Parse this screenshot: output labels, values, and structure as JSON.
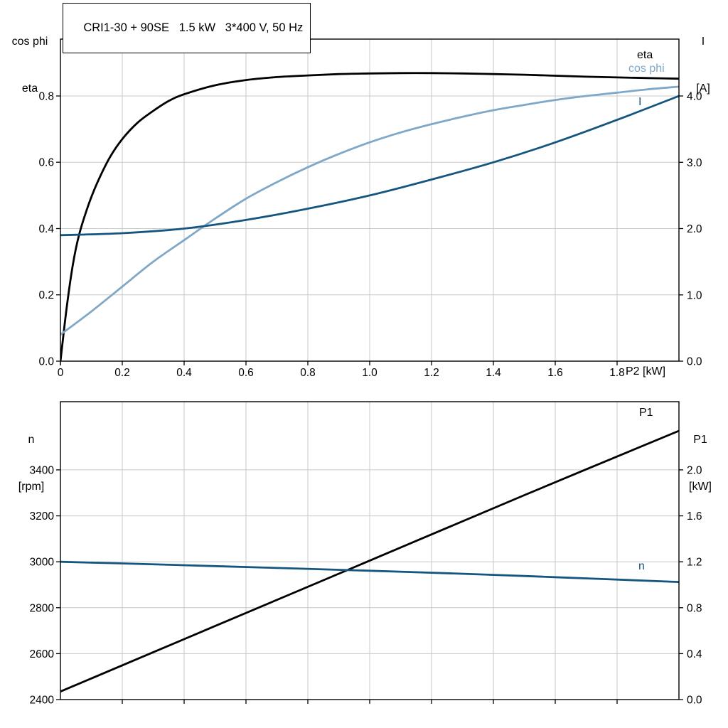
{
  "title_box": "CRI1-30 + 90SE   1.5 kW   3*400 V, 50 Hz",
  "colors": {
    "black": "#000000",
    "dark_blue": "#155680",
    "light_blue": "#7fa8c8",
    "grid": "#c9c9c9"
  },
  "labels": {
    "axis_top_left": [
      "cos phi",
      "eta"
    ],
    "axis_top_right": [
      "I",
      "[A]"
    ],
    "x_axis_title": "P2 [kW]",
    "axis_bottom_left": [
      "n",
      "[rpm]"
    ],
    "axis_bottom_right": [
      "P1",
      "[kW]"
    ],
    "curve_eta": "eta",
    "curve_cosphi": "cos phi",
    "curve_I": "I",
    "curve_P1": "P1",
    "curve_n": "n"
  },
  "chart_data": [
    {
      "type": "line",
      "title": "Motor efficiency, power factor and current vs shaft power P2",
      "xlabel": "P2 [kW]",
      "ylabel_left": "cos phi / eta",
      "ylabel_right": "I [A]",
      "xlim": [
        0,
        2.0
      ],
      "xticks": [
        0,
        0.2,
        0.4,
        0.6,
        0.8,
        1.0,
        1.2,
        1.4,
        1.6,
        1.8
      ],
      "xtick_labels": [
        "0",
        "0.2",
        "0.4",
        "0.6",
        "0.8",
        "1.0",
        "1.2",
        "1.4",
        "1.6",
        "1.8"
      ],
      "ylim_left": [
        0,
        0.9715
      ],
      "yticks_left": [
        0,
        0.2,
        0.4,
        0.6,
        0.8
      ],
      "ytick_labels_left": [
        "0.0",
        "0.2",
        "0.4",
        "0.6",
        "0.8"
      ],
      "ylim_right": [
        0,
        4.858
      ],
      "yticks_right": [
        0,
        1.0,
        2.0,
        3.0,
        4.0
      ],
      "ytick_labels_right": [
        "0.0",
        "1.0",
        "2.0",
        "3.0",
        "4.0"
      ],
      "grid": true,
      "series": [
        {
          "name": "eta",
          "axis": "left",
          "color_key": "black",
          "width": 2.8,
          "x": [
            0,
            0.02,
            0.04,
            0.06,
            0.09,
            0.12,
            0.16,
            0.2,
            0.25,
            0.3,
            0.35,
            0.4,
            0.5,
            0.6,
            0.7,
            0.8,
            0.9,
            1.0,
            1.1,
            1.2,
            1.3,
            1.4,
            1.5,
            1.6,
            1.7,
            1.8,
            1.9,
            2.0
          ],
          "y": [
            0,
            0.16,
            0.29,
            0.38,
            0.47,
            0.54,
            0.615,
            0.67,
            0.72,
            0.755,
            0.785,
            0.805,
            0.832,
            0.848,
            0.857,
            0.862,
            0.866,
            0.868,
            0.869,
            0.869,
            0.868,
            0.866,
            0.864,
            0.861,
            0.858,
            0.856,
            0.854,
            0.852
          ]
        },
        {
          "name": "cos phi",
          "axis": "left",
          "color_key": "light_blue",
          "width": 2.8,
          "x": [
            0,
            0.1,
            0.2,
            0.3,
            0.4,
            0.5,
            0.6,
            0.7,
            0.8,
            0.9,
            1.0,
            1.1,
            1.2,
            1.3,
            1.4,
            1.5,
            1.6,
            1.7,
            1.8,
            1.9,
            2.0
          ],
          "y": [
            0.08,
            0.15,
            0.225,
            0.3,
            0.365,
            0.43,
            0.49,
            0.54,
            0.585,
            0.625,
            0.66,
            0.69,
            0.715,
            0.737,
            0.757,
            0.773,
            0.788,
            0.8,
            0.81,
            0.82,
            0.828
          ]
        },
        {
          "name": "I",
          "axis": "right",
          "color_key": "dark_blue",
          "width": 2.8,
          "x": [
            0,
            0.2,
            0.4,
            0.6,
            0.8,
            1.0,
            1.2,
            1.4,
            1.6,
            1.8,
            2.0
          ],
          "y": [
            1.9,
            1.93,
            2.0,
            2.13,
            2.3,
            2.5,
            2.74,
            3.0,
            3.3,
            3.64,
            4.0
          ]
        }
      ]
    },
    {
      "type": "line",
      "title": "Speed n and input power P1 vs shaft power P2",
      "xlabel": "P2 [kW]",
      "ylabel_left": "n [rpm]",
      "ylabel_right": "P1 [kW]",
      "xlim": [
        0,
        2.0
      ],
      "xticks": [
        0.2,
        0.4,
        0.6,
        0.8,
        1.0,
        1.2,
        1.4,
        1.6,
        1.8
      ],
      "xtick_labels": [],
      "ylim_left": [
        2400,
        3697
      ],
      "yticks_left": [
        2400,
        2600,
        2800,
        3000,
        3200,
        3400
      ],
      "ytick_labels_left": [
        "2400",
        "2600",
        "2800",
        "3000",
        "3200",
        "3400"
      ],
      "ylim_right": [
        0,
        2.594
      ],
      "yticks_right": [
        0,
        0.4,
        0.8,
        1.2,
        1.6,
        2.0
      ],
      "ytick_labels_right": [
        "0.0",
        "0.4",
        "0.8",
        "1.2",
        "1.6",
        "2.0"
      ],
      "grid": true,
      "series": [
        {
          "name": "P1",
          "axis": "right",
          "color_key": "black",
          "width": 2.8,
          "x": [
            0,
            0.5,
            1.0,
            1.5,
            2.0
          ],
          "y": [
            0.07,
            0.64,
            1.21,
            1.78,
            2.34
          ]
        },
        {
          "name": "n",
          "axis": "left",
          "color_key": "dark_blue",
          "width": 2.8,
          "x": [
            0,
            0.25,
            0.5,
            0.75,
            1.0,
            1.25,
            1.5,
            1.75,
            2.0
          ],
          "y": [
            3000,
            2991,
            2981,
            2971,
            2961,
            2950,
            2938,
            2925,
            2912
          ]
        }
      ]
    }
  ]
}
